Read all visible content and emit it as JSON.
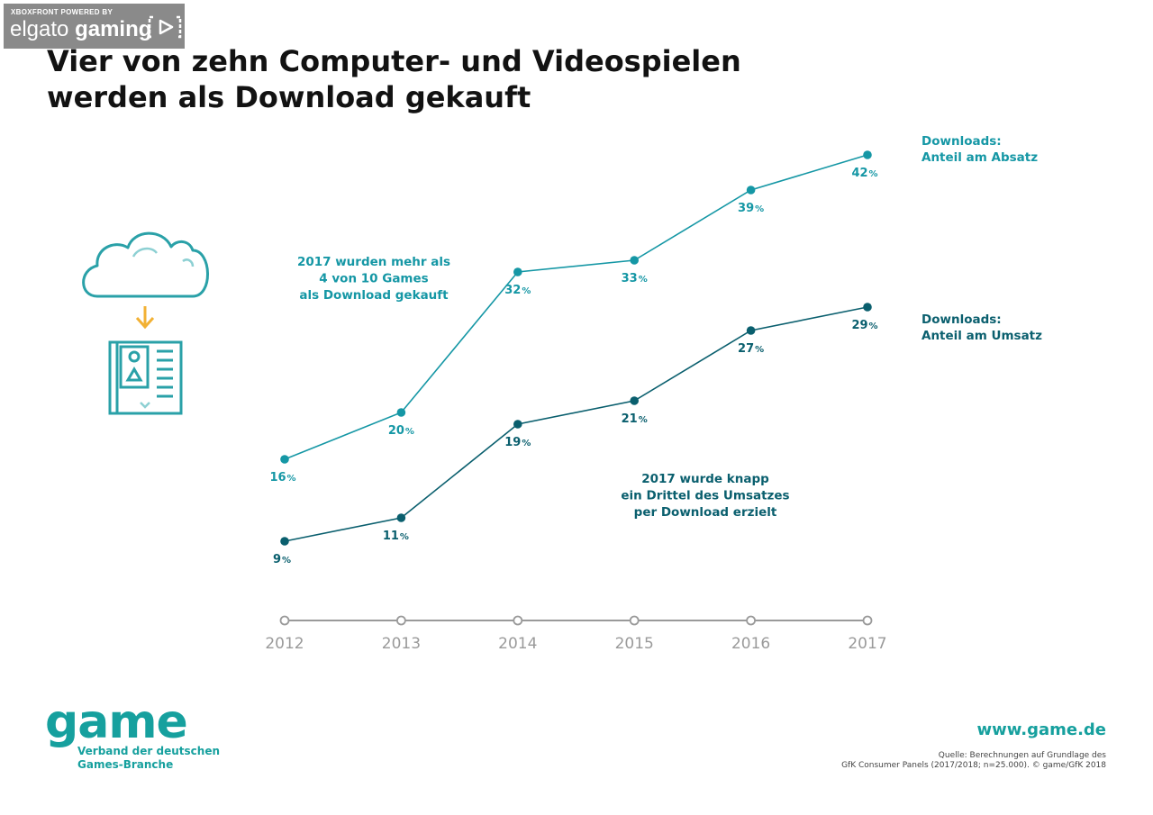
{
  "watermark": {
    "top_text": "XBOXFRONT POWERED BY",
    "brand_light": "elgato",
    "brand_bold": "gaming"
  },
  "title_lines": [
    "Vier von zehn Computer- und Videospielen",
    "werden als Download gekauft"
  ],
  "colors": {
    "series_absatz": "#1597a5",
    "series_umsatz": "#0a5f6e",
    "axis": "#9a9a9a",
    "icon_teal": "#2aa1a8",
    "arrow": "#f2b134",
    "brand": "#16a09e"
  },
  "icon_names": [
    "cloud-icon",
    "download-arrow-icon",
    "game-box-icon"
  ],
  "chart_data": {
    "type": "line",
    "x": [
      "2012",
      "2013",
      "2014",
      "2015",
      "2016",
      "2017"
    ],
    "ylim": [
      0,
      50
    ],
    "grid": false,
    "value_suffix": "%",
    "series": [
      {
        "name_lines": [
          "Downloads:",
          "Anteil am Absatz"
        ],
        "values": [
          16,
          20,
          32,
          33,
          39,
          42
        ]
      },
      {
        "name_lines": [
          "Downloads:",
          "Anteil am Umsatz"
        ],
        "values": [
          9,
          11,
          19,
          21,
          27,
          29
        ]
      }
    ],
    "annotations": [
      {
        "lines": [
          "2017 wurden mehr als",
          "4 von 10 Games",
          "als Download gekauft"
        ]
      },
      {
        "lines": [
          "2017 wurde knapp",
          "ein Drittel des Umsatzes",
          "per Download erzielt"
        ]
      }
    ]
  },
  "footer": {
    "logo": "game",
    "logo_sub": [
      "Verband der deutschen",
      "Games-Branche"
    ],
    "website": "www.game.de",
    "source_lines": [
      "Quelle: Berechnungen auf Grundlage des",
      "GfK Consumer Panels (2017/2018; n=25.000). © game/GfK 2018"
    ]
  }
}
